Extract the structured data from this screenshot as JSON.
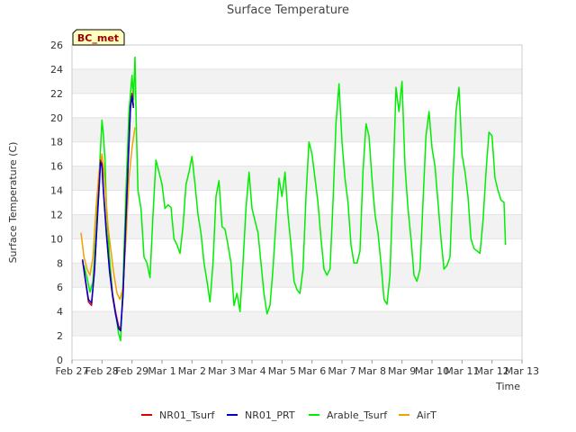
{
  "chart_data": {
    "type": "line",
    "title": "Surface Temperature",
    "xlabel": "Time",
    "ylabel": "Surface Temperature (C)",
    "badge": "BC_met",
    "ylim": [
      0,
      26
    ],
    "yticks": [
      0,
      2,
      4,
      6,
      8,
      10,
      12,
      14,
      16,
      18,
      20,
      22,
      24,
      26
    ],
    "xlim": [
      0,
      15
    ],
    "xticks": [
      {
        "v": 0,
        "label": "Feb 27"
      },
      {
        "v": 1,
        "label": "Feb 28"
      },
      {
        "v": 2,
        "label": "Feb 29"
      },
      {
        "v": 3,
        "label": "Mar 1"
      },
      {
        "v": 4,
        "label": "Mar 2"
      },
      {
        "v": 5,
        "label": "Mar 3"
      },
      {
        "v": 6,
        "label": "Mar 4"
      },
      {
        "v": 7,
        "label": "Mar 5"
      },
      {
        "v": 8,
        "label": "Mar 6"
      },
      {
        "v": 9,
        "label": "Mar 7"
      },
      {
        "v": 10,
        "label": "Mar 8"
      },
      {
        "v": 11,
        "label": "Mar 9"
      },
      {
        "v": 12,
        "label": "Mar 10"
      },
      {
        "v": 13,
        "label": "Mar 11"
      },
      {
        "v": 14,
        "label": "Mar 12"
      },
      {
        "v": 15,
        "label": "Mar 13"
      }
    ],
    "grid": "horizontal-bands",
    "legend_position": "bottom",
    "series": [
      {
        "name": "NR01_Tsurf",
        "color": "#dd0000",
        "points": [
          [
            0.35,
            8.2
          ],
          [
            0.45,
            6.5
          ],
          [
            0.55,
            4.8
          ],
          [
            0.65,
            4.5
          ],
          [
            0.75,
            7.5
          ],
          [
            0.85,
            12.0
          ],
          [
            0.95,
            16.5
          ],
          [
            1.0,
            16.2
          ],
          [
            1.05,
            14.0
          ],
          [
            1.15,
            10.5
          ],
          [
            1.25,
            7.5
          ],
          [
            1.35,
            5.5
          ],
          [
            1.45,
            4.0
          ],
          [
            1.55,
            2.8
          ],
          [
            1.62,
            2.5
          ],
          [
            1.7,
            5.5
          ],
          [
            1.8,
            12.0
          ],
          [
            1.9,
            18.0
          ],
          [
            1.95,
            21.0
          ],
          [
            2.0,
            22.0
          ],
          [
            2.05,
            21.0
          ]
        ]
      },
      {
        "name": "NR01_PRT",
        "color": "#0000cc",
        "points": [
          [
            0.35,
            8.3
          ],
          [
            0.45,
            6.6
          ],
          [
            0.55,
            5.0
          ],
          [
            0.65,
            4.7
          ],
          [
            0.75,
            7.3
          ],
          [
            0.85,
            11.8
          ],
          [
            0.95,
            16.3
          ],
          [
            1.0,
            16.0
          ],
          [
            1.05,
            13.8
          ],
          [
            1.15,
            10.3
          ],
          [
            1.25,
            7.3
          ],
          [
            1.35,
            5.3
          ],
          [
            1.45,
            3.8
          ],
          [
            1.55,
            2.6
          ],
          [
            1.62,
            2.4
          ],
          [
            1.7,
            5.3
          ],
          [
            1.8,
            11.8
          ],
          [
            1.9,
            17.8
          ],
          [
            1.95,
            20.8
          ],
          [
            2.0,
            21.8
          ],
          [
            2.05,
            20.8
          ]
        ]
      },
      {
        "name": "Arable_Tsurf",
        "color": "#00ee00",
        "points": [
          [
            0.4,
            7.8
          ],
          [
            0.5,
            6.8
          ],
          [
            0.6,
            5.6
          ],
          [
            0.7,
            6.5
          ],
          [
            0.8,
            10.5
          ],
          [
            0.9,
            15.0
          ],
          [
            1.0,
            19.8
          ],
          [
            1.05,
            18.5
          ],
          [
            1.1,
            16.5
          ],
          [
            1.15,
            12.5
          ],
          [
            1.25,
            8.5
          ],
          [
            1.35,
            5.5
          ],
          [
            1.45,
            4.0
          ],
          [
            1.55,
            2.2
          ],
          [
            1.62,
            1.6
          ],
          [
            1.7,
            6.5
          ],
          [
            1.8,
            14.0
          ],
          [
            1.9,
            20.5
          ],
          [
            2.0,
            23.5
          ],
          [
            2.05,
            21.5
          ],
          [
            2.1,
            25.0
          ],
          [
            2.15,
            18.5
          ],
          [
            2.2,
            14.0
          ],
          [
            2.3,
            12.5
          ],
          [
            2.4,
            8.5
          ],
          [
            2.5,
            8.0
          ],
          [
            2.6,
            6.8
          ],
          [
            2.7,
            12.0
          ],
          [
            2.8,
            16.5
          ],
          [
            2.9,
            15.5
          ],
          [
            3.0,
            14.5
          ],
          [
            3.1,
            12.5
          ],
          [
            3.2,
            12.8
          ],
          [
            3.3,
            12.6
          ],
          [
            3.4,
            10.0
          ],
          [
            3.5,
            9.5
          ],
          [
            3.6,
            8.8
          ],
          [
            3.7,
            11.0
          ],
          [
            3.8,
            14.5
          ],
          [
            3.9,
            15.5
          ],
          [
            4.0,
            16.8
          ],
          [
            4.1,
            14.5
          ],
          [
            4.2,
            12.0
          ],
          [
            4.3,
            10.5
          ],
          [
            4.4,
            8.0
          ],
          [
            4.5,
            6.5
          ],
          [
            4.6,
            4.8
          ],
          [
            4.7,
            8.0
          ],
          [
            4.8,
            13.5
          ],
          [
            4.9,
            14.8
          ],
          [
            5.0,
            11.0
          ],
          [
            5.1,
            10.8
          ],
          [
            5.2,
            9.5
          ],
          [
            5.3,
            8.0
          ],
          [
            5.4,
            4.5
          ],
          [
            5.5,
            5.5
          ],
          [
            5.6,
            4.0
          ],
          [
            5.7,
            8.0
          ],
          [
            5.8,
            12.5
          ],
          [
            5.9,
            15.5
          ],
          [
            6.0,
            12.5
          ],
          [
            6.1,
            11.5
          ],
          [
            6.2,
            10.5
          ],
          [
            6.3,
            8.0
          ],
          [
            6.4,
            5.5
          ],
          [
            6.5,
            3.8
          ],
          [
            6.6,
            4.5
          ],
          [
            6.7,
            7.5
          ],
          [
            6.8,
            11.5
          ],
          [
            6.9,
            15.0
          ],
          [
            7.0,
            13.5
          ],
          [
            7.1,
            15.5
          ],
          [
            7.2,
            12.0
          ],
          [
            7.3,
            9.5
          ],
          [
            7.4,
            6.5
          ],
          [
            7.5,
            5.8
          ],
          [
            7.6,
            5.5
          ],
          [
            7.7,
            7.5
          ],
          [
            7.8,
            13.5
          ],
          [
            7.9,
            18.0
          ],
          [
            8.0,
            17.0
          ],
          [
            8.1,
            15.0
          ],
          [
            8.2,
            13.0
          ],
          [
            8.3,
            10.0
          ],
          [
            8.4,
            7.5
          ],
          [
            8.5,
            7.0
          ],
          [
            8.6,
            7.5
          ],
          [
            8.7,
            13.0
          ],
          [
            8.8,
            19.5
          ],
          [
            8.9,
            22.8
          ],
          [
            9.0,
            18.0
          ],
          [
            9.1,
            15.0
          ],
          [
            9.2,
            13.0
          ],
          [
            9.3,
            9.5
          ],
          [
            9.4,
            8.0
          ],
          [
            9.5,
            8.0
          ],
          [
            9.6,
            9.0
          ],
          [
            9.7,
            15.5
          ],
          [
            9.8,
            19.5
          ],
          [
            9.9,
            18.5
          ],
          [
            10.0,
            15.0
          ],
          [
            10.1,
            12.0
          ],
          [
            10.2,
            10.5
          ],
          [
            10.3,
            8.0
          ],
          [
            10.4,
            5.0
          ],
          [
            10.5,
            4.6
          ],
          [
            10.6,
            7.0
          ],
          [
            10.7,
            14.5
          ],
          [
            10.8,
            22.5
          ],
          [
            10.9,
            20.5
          ],
          [
            11.0,
            23.0
          ],
          [
            11.1,
            16.0
          ],
          [
            11.2,
            12.5
          ],
          [
            11.3,
            10.0
          ],
          [
            11.4,
            7.0
          ],
          [
            11.5,
            6.5
          ],
          [
            11.6,
            7.5
          ],
          [
            11.7,
            13.0
          ],
          [
            11.8,
            18.5
          ],
          [
            11.9,
            20.5
          ],
          [
            12.0,
            17.5
          ],
          [
            12.1,
            16.0
          ],
          [
            12.2,
            13.0
          ],
          [
            12.3,
            10.0
          ],
          [
            12.4,
            7.5
          ],
          [
            12.5,
            7.8
          ],
          [
            12.6,
            8.5
          ],
          [
            12.7,
            15.0
          ],
          [
            12.8,
            20.5
          ],
          [
            12.9,
            22.5
          ],
          [
            13.0,
            17.0
          ],
          [
            13.1,
            15.5
          ],
          [
            13.2,
            13.5
          ],
          [
            13.3,
            10.0
          ],
          [
            13.4,
            9.2
          ],
          [
            13.5,
            9.0
          ],
          [
            13.6,
            8.8
          ],
          [
            13.7,
            11.5
          ],
          [
            13.8,
            15.5
          ],
          [
            13.9,
            18.8
          ],
          [
            14.0,
            18.5
          ],
          [
            14.1,
            15.0
          ],
          [
            14.2,
            14.0
          ],
          [
            14.3,
            13.2
          ],
          [
            14.4,
            13.0
          ],
          [
            14.45,
            9.5
          ]
        ]
      },
      {
        "name": "AirT",
        "color": "#f0a000",
        "points": [
          [
            0.3,
            10.5
          ],
          [
            0.4,
            8.5
          ],
          [
            0.5,
            7.5
          ],
          [
            0.6,
            7.0
          ],
          [
            0.7,
            8.5
          ],
          [
            0.8,
            12.5
          ],
          [
            0.9,
            15.5
          ],
          [
            1.0,
            17.0
          ],
          [
            1.05,
            16.0
          ],
          [
            1.1,
            14.5
          ],
          [
            1.2,
            11.0
          ],
          [
            1.3,
            9.0
          ],
          [
            1.4,
            7.0
          ],
          [
            1.5,
            5.5
          ],
          [
            1.6,
            5.0
          ],
          [
            1.7,
            6.0
          ],
          [
            1.8,
            10.0
          ],
          [
            1.9,
            15.0
          ],
          [
            2.0,
            17.5
          ],
          [
            2.1,
            19.2
          ]
        ]
      }
    ]
  }
}
